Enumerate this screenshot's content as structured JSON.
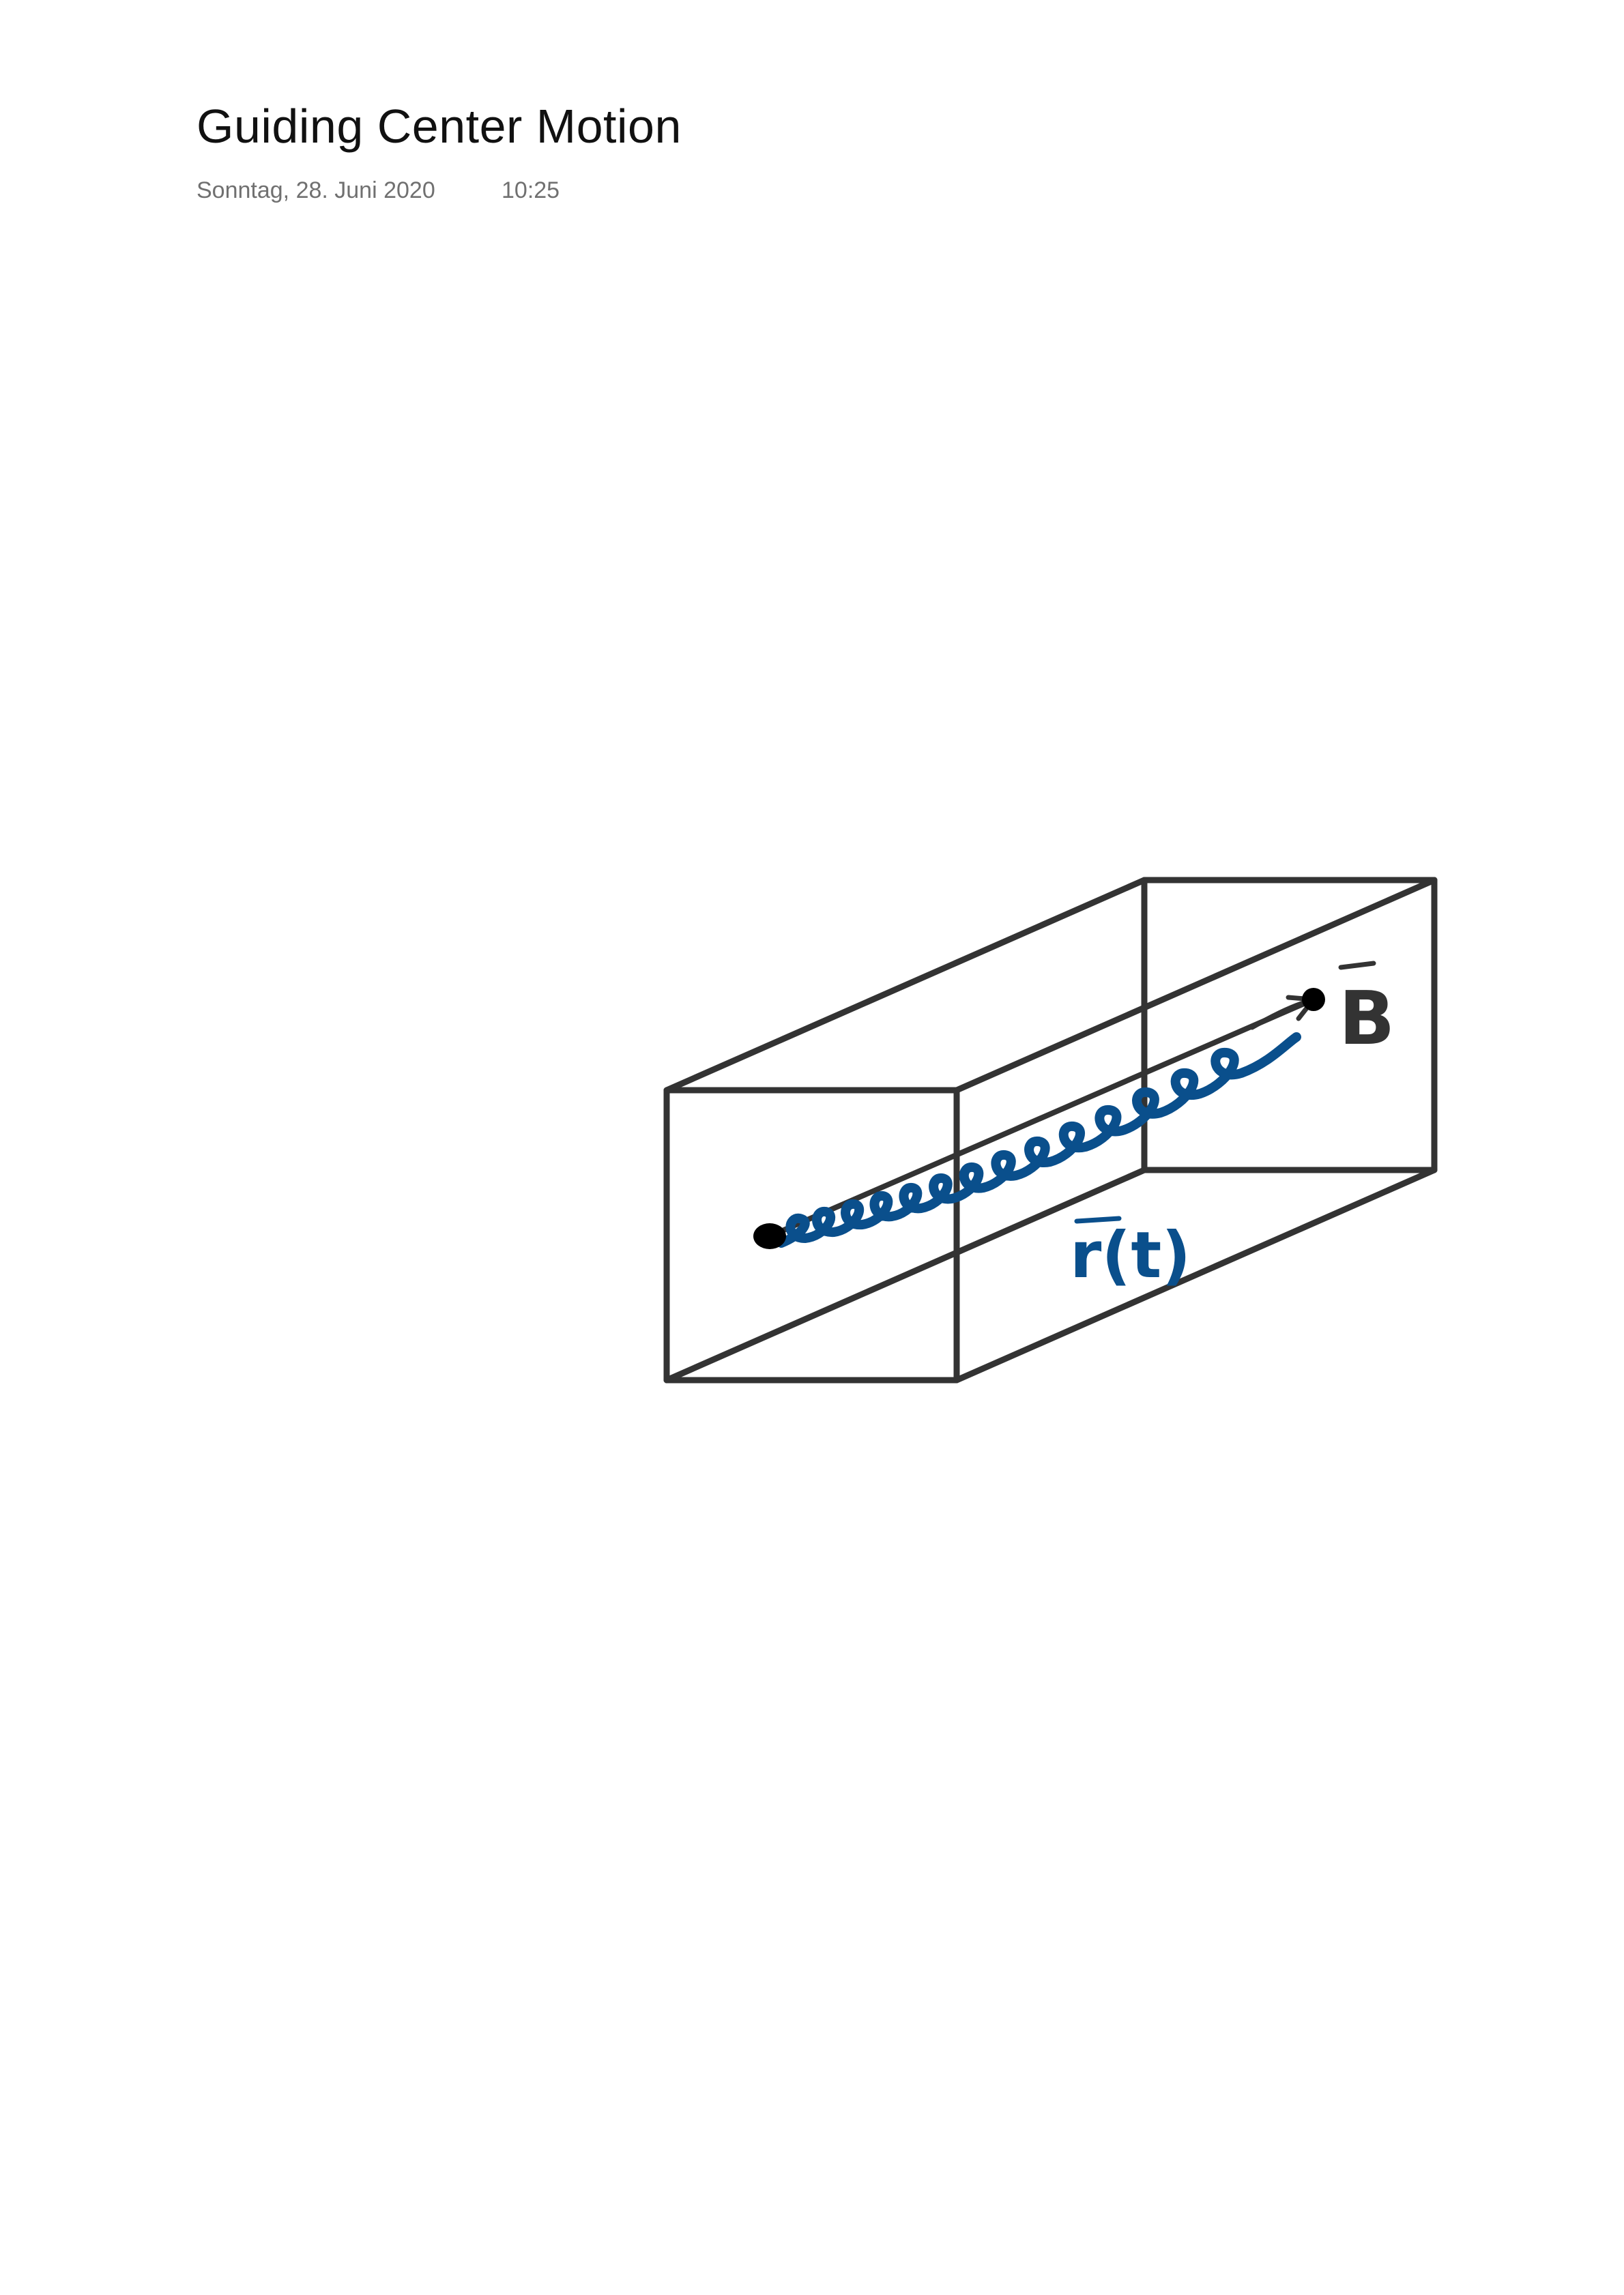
{
  "page": {
    "title": "Guiding Center Motion",
    "date": "Sonntag, 28. Juni 2020",
    "time": "10:25"
  },
  "sketch": {
    "label_field": "B",
    "label_position": "r(t)",
    "colors": {
      "box": "#333333",
      "helix": "#0a4f8c",
      "guiding_center": "#333333",
      "endpoints": "#000000"
    }
  }
}
